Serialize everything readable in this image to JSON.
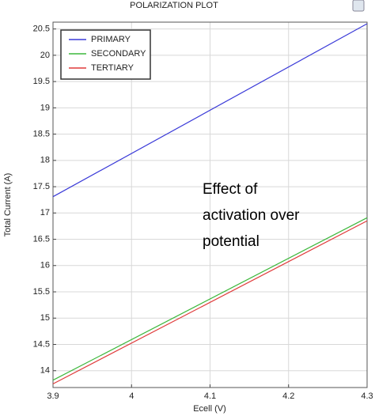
{
  "chart_data": {
    "type": "line",
    "title": "POLARIZATION PLOT",
    "x_label": "Ecell (V)",
    "y_label": "Total Current (A)",
    "x": [
      3.9,
      4.3
    ],
    "series": [
      {
        "name": "PRIMARY",
        "color": "#3a3ad8",
        "values": [
          17.31,
          20.6
        ]
      },
      {
        "name": "SECONDARY",
        "color": "#3cb83c",
        "values": [
          13.82,
          16.91
        ]
      },
      {
        "name": "TERTIARY",
        "color": "#e03a3a",
        "values": [
          13.75,
          16.85
        ]
      }
    ],
    "xlim": [
      3.9,
      4.3
    ],
    "xticks": [
      3.9,
      4,
      4.1,
      4.2,
      4.3
    ],
    "ylim": [
      13.68,
      20.63
    ],
    "yticks": [
      14,
      14.5,
      15,
      15.5,
      16,
      16.5,
      17,
      17.5,
      18,
      18.5,
      19,
      19.5,
      20,
      20.5
    ],
    "grid": true,
    "legend": "top-left",
    "annotation": [
      "Effect of",
      "activation over",
      "potential"
    ]
  }
}
